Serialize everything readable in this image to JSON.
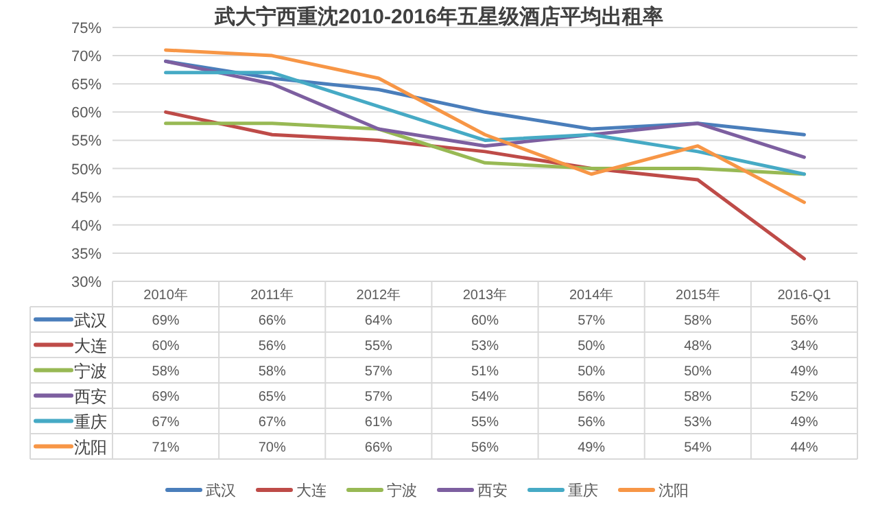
{
  "chart_data": {
    "type": "line",
    "title": "武大宁西重沈2010-2016年五星级酒店平均出租率",
    "categories": [
      "2010年",
      "2011年",
      "2012年",
      "2013年",
      "2014年",
      "2015年",
      "2016-Q1"
    ],
    "ylim": [
      30,
      75
    ],
    "yticks": [
      {
        "value": 30,
        "label": "30%"
      },
      {
        "value": 35,
        "label": "35%"
      },
      {
        "value": 40,
        "label": "40%"
      },
      {
        "value": 45,
        "label": "45%"
      },
      {
        "value": 50,
        "label": "50%"
      },
      {
        "value": 55,
        "label": "55%"
      },
      {
        "value": 60,
        "label": "60%"
      },
      {
        "value": 65,
        "label": "65%"
      },
      {
        "value": 70,
        "label": "70%"
      },
      {
        "value": 75,
        "label": "75%"
      }
    ],
    "grid": "y",
    "legend": "bottom",
    "series": [
      {
        "name": "武汉",
        "color": "#4a7ebb",
        "values": [
          69,
          66,
          64,
          60,
          57,
          58,
          56
        ],
        "value_labels": [
          "69%",
          "66%",
          "64%",
          "60%",
          "57%",
          "58%",
          "56%"
        ]
      },
      {
        "name": "大连",
        "color": "#be4b48",
        "values": [
          60,
          56,
          55,
          53,
          50,
          48,
          34
        ],
        "value_labels": [
          "60%",
          "56%",
          "55%",
          "53%",
          "50%",
          "48%",
          "34%"
        ]
      },
      {
        "name": "宁波",
        "color": "#98b954",
        "values": [
          58,
          58,
          57,
          51,
          50,
          50,
          49
        ],
        "value_labels": [
          "58%",
          "58%",
          "57%",
          "51%",
          "50%",
          "50%",
          "49%"
        ]
      },
      {
        "name": "西安",
        "color": "#7d5fa0",
        "values": [
          69,
          65,
          57,
          54,
          56,
          58,
          52
        ],
        "value_labels": [
          "69%",
          "65%",
          "57%",
          "54%",
          "56%",
          "58%",
          "52%"
        ]
      },
      {
        "name": "重庆",
        "color": "#46aac5",
        "values": [
          67,
          67,
          61,
          55,
          56,
          53,
          49
        ],
        "value_labels": [
          "67%",
          "67%",
          "61%",
          "55%",
          "56%",
          "53%",
          "49%"
        ]
      },
      {
        "name": "沈阳",
        "color": "#f79646",
        "values": [
          71,
          70,
          66,
          56,
          49,
          54,
          44
        ],
        "value_labels": [
          "71%",
          "70%",
          "66%",
          "56%",
          "49%",
          "54%",
          "44%"
        ]
      }
    ]
  }
}
